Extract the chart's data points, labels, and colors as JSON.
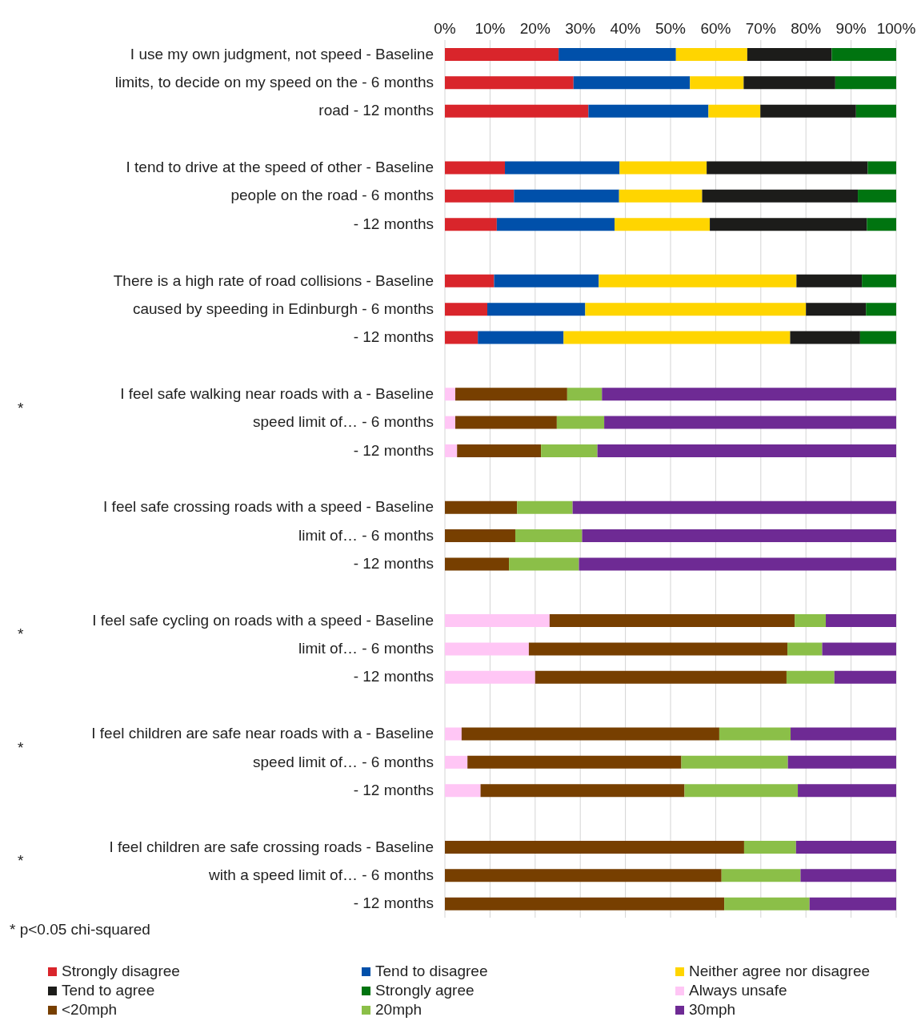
{
  "chart_data": {
    "type": "bar",
    "orientation": "horizontal",
    "stacked": true,
    "grid": "x",
    "legend": "bottom",
    "categories": [
      "I use my own judgment, not speed - Baseline",
      "limits, to decide on my speed on the - 6 months",
      "road - 12 months",
      null,
      "I tend to drive at the speed of other - Baseline",
      "people on the road - 6 months",
      "- 12 months",
      null,
      "There is a high rate of road collisions - Baseline",
      "caused by speeding in Edinburgh - 6 months",
      "- 12 months",
      null,
      "I feel safe walking near roads with a - Baseline",
      "speed limit of… - 6 months",
      "- 12 months",
      null,
      "I feel safe crossing roads with a speed - Baseline",
      "limit of… - 6 months",
      "- 12 months",
      null,
      "I feel safe cycling on roads with a speed - Baseline",
      "limit of… - 6 months",
      "- 12 months",
      null,
      "I feel children are safe near roads with a - Baseline",
      "speed limit of… - 6 months",
      "- 12 months",
      null,
      "I feel children are safe crossing roads - Baseline",
      "with a speed limit of… - 6 months",
      "- 12 months"
    ],
    "xlim": [
      0,
      100
    ],
    "xticks": [
      {
        "value": 0,
        "label": "0%"
      },
      {
        "value": 10,
        "label": "10%"
      },
      {
        "value": 20,
        "label": "20%"
      },
      {
        "value": 30,
        "label": "30%"
      },
      {
        "value": 40,
        "label": "40%"
      },
      {
        "value": 50,
        "label": "50%"
      },
      {
        "value": 60,
        "label": "60%"
      },
      {
        "value": 70,
        "label": "70%"
      },
      {
        "value": 80,
        "label": "80%"
      },
      {
        "value": 90,
        "label": "90%"
      },
      {
        "value": 100,
        "label": "100%"
      }
    ],
    "series": [
      {
        "name": "Strongly disagree",
        "color": "#d9252b",
        "values": [
          25.2,
          28.5,
          31.8,
          null,
          13.3,
          15.3,
          11.5,
          null,
          10.9,
          9.4,
          7.3,
          null,
          null,
          null,
          null,
          null,
          null,
          null,
          null,
          null,
          null,
          null,
          null,
          null,
          null,
          null,
          null,
          null,
          null,
          null,
          null
        ]
      },
      {
        "name": "Tend to disagree",
        "color": "#0050aa",
        "values": [
          26.0,
          25.8,
          26.6,
          null,
          25.4,
          23.3,
          26.1,
          null,
          23.2,
          21.7,
          19.0,
          null,
          null,
          null,
          null,
          null,
          null,
          null,
          null,
          null,
          null,
          null,
          null,
          null,
          null,
          null,
          null,
          null,
          null,
          null,
          null
        ]
      },
      {
        "name": "Neither agree nor disagree",
        "color": "#ffd500",
        "values": [
          15.8,
          11.9,
          11.5,
          null,
          19.3,
          18.4,
          21.1,
          null,
          43.8,
          48.9,
          50.2,
          null,
          null,
          null,
          null,
          null,
          null,
          null,
          null,
          null,
          null,
          null,
          null,
          null,
          null,
          null,
          null,
          null,
          null,
          null,
          null
        ]
      },
      {
        "name": "Tend to agree",
        "color": "#1c1c1a",
        "values": [
          18.7,
          20.3,
          21.2,
          null,
          35.7,
          34.5,
          34.8,
          null,
          14.5,
          13.3,
          15.5,
          null,
          null,
          null,
          null,
          null,
          null,
          null,
          null,
          null,
          null,
          null,
          null,
          null,
          null,
          null,
          null,
          null,
          null,
          null,
          null
        ]
      },
      {
        "name": "Strongly agree",
        "color": "#007410",
        "values": [
          14.3,
          13.5,
          8.9,
          null,
          6.3,
          8.5,
          6.5,
          null,
          7.6,
          6.7,
          8.0,
          null,
          null,
          null,
          null,
          null,
          null,
          null,
          null,
          null,
          null,
          null,
          null,
          null,
          null,
          null,
          null,
          null,
          null,
          null,
          null
        ]
      },
      {
        "name": "Always unsafe",
        "color": "#ffc6f5",
        "values": [
          null,
          null,
          null,
          null,
          null,
          null,
          null,
          null,
          null,
          null,
          null,
          null,
          2.3,
          2.3,
          2.7,
          null,
          null,
          null,
          null,
          null,
          23.2,
          18.6,
          20.0,
          null,
          3.7,
          5.0,
          7.9,
          null,
          null,
          null,
          null
        ]
      },
      {
        "name": "<20mph",
        "color": "#773f00",
        "values": [
          null,
          null,
          null,
          null,
          null,
          null,
          null,
          null,
          null,
          null,
          null,
          null,
          24.8,
          22.5,
          18.6,
          null,
          16.0,
          15.6,
          14.2,
          null,
          54.3,
          57.3,
          55.7,
          null,
          57.1,
          47.4,
          45.2,
          null,
          66.3,
          61.3,
          61.9
        ]
      },
      {
        "name": "20mph",
        "color": "#8bbf48",
        "values": [
          null,
          null,
          null,
          null,
          null,
          null,
          null,
          null,
          null,
          null,
          null,
          null,
          7.7,
          10.5,
          12.5,
          null,
          12.3,
          14.8,
          15.5,
          null,
          6.9,
          7.7,
          10.6,
          null,
          15.8,
          23.6,
          25.1,
          null,
          11.5,
          17.5,
          18.9
        ]
      },
      {
        "name": "30mph",
        "color": "#6e2a94",
        "values": [
          null,
          null,
          null,
          null,
          null,
          null,
          null,
          null,
          null,
          null,
          null,
          null,
          65.2,
          64.7,
          66.2,
          null,
          71.7,
          69.6,
          70.3,
          null,
          15.6,
          16.4,
          13.7,
          null,
          23.4,
          24.0,
          21.8,
          null,
          22.2,
          21.2,
          19.2
        ]
      }
    ],
    "annotations": [
      "*",
      "*",
      "*",
      "*",
      "* p<0.05 chi-squared"
    ]
  }
}
